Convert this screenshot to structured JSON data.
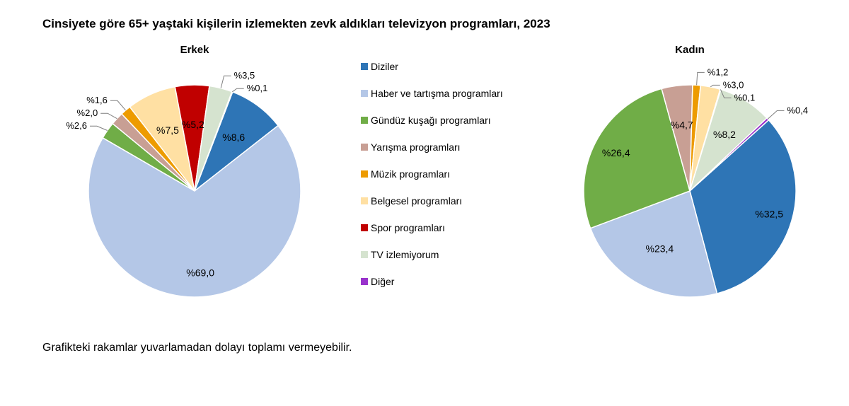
{
  "title": "Cinsiyete göre 65+ yaştaki kişilerin izlemekten zevk aldıkları televizyon programları, 2023",
  "footnote": "Grafikteki rakamlar yuvarlamadan dolayı toplamı vermeyebilir.",
  "legend_fontsize": 14,
  "label_fontsize": 13,
  "categories": [
    {
      "key": "diziler",
      "label": "Diziler",
      "color": "#2e75b6"
    },
    {
      "key": "haber",
      "label": "Haber ve tartışma programları",
      "color": "#b4c7e7"
    },
    {
      "key": "gunduz",
      "label": "Gündüz kuşağı programları",
      "color": "#70ad47"
    },
    {
      "key": "yarisma",
      "label": "Yarışma programları",
      "color": "#c89f94"
    },
    {
      "key": "muzik",
      "label": "Müzik programları",
      "color": "#ed9b00"
    },
    {
      "key": "belgesel",
      "label": "Belgesel programları",
      "color": "#ffe0a3"
    },
    {
      "key": "spor",
      "label": "Spor programları",
      "color": "#c00000"
    },
    {
      "key": "tvyok",
      "label": "TV izlemiyorum",
      "color": "#d5e3cf"
    },
    {
      "key": "diger",
      "label": "Diğer",
      "color": "#9933cc"
    }
  ],
  "charts": [
    {
      "title": "Erkek",
      "type": "pie",
      "radius": 150,
      "start_angle_deg": 21,
      "stroke": "#ffffff",
      "stroke_width": 1.5,
      "slices": [
        {
          "key": "diziler",
          "value": 8.6,
          "label": "%8,6",
          "label_pos": "inner",
          "color": "#2e75b6"
        },
        {
          "key": "haber",
          "value": 69.0,
          "label": "%69,0",
          "label_pos": "inner",
          "color": "#b4c7e7"
        },
        {
          "key": "gunduz",
          "value": 2.6,
          "label": "%2,6",
          "label_pos": "outer",
          "color": "#70ad47"
        },
        {
          "key": "yarisma",
          "value": 2.0,
          "label": "%2,0",
          "label_pos": "outer",
          "color": "#c89f94"
        },
        {
          "key": "muzik",
          "value": 1.6,
          "label": "%1,6",
          "label_pos": "outer",
          "color": "#ed9b00"
        },
        {
          "key": "belgesel",
          "value": 7.5,
          "label": "%7,5",
          "label_pos": "inner",
          "color": "#ffe0a3"
        },
        {
          "key": "spor",
          "value": 5.2,
          "label": "%5,2",
          "label_pos": "inner",
          "color": "#c00000"
        },
        {
          "key": "tvyok",
          "value": 3.5,
          "label": "%3,5",
          "label_pos": "outer",
          "color": "#d5e3cf"
        },
        {
          "key": "diger",
          "value": 0.1,
          "label": "%0,1",
          "label_pos": "outer",
          "color": "#9933cc"
        }
      ]
    },
    {
      "title": "Kadın",
      "type": "pie",
      "radius": 150,
      "start_angle_deg": 48,
      "stroke": "#ffffff",
      "stroke_width": 1.5,
      "slices": [
        {
          "key": "diziler",
          "value": 32.5,
          "label": "%32,5",
          "label_pos": "inner",
          "color": "#2e75b6"
        },
        {
          "key": "haber",
          "value": 23.4,
          "label": "%23,4",
          "label_pos": "inner",
          "color": "#b4c7e7"
        },
        {
          "key": "gunduz",
          "value": 26.4,
          "label": "%26,4",
          "label_pos": "inner",
          "color": "#70ad47"
        },
        {
          "key": "yarisma",
          "value": 4.7,
          "label": "%4,7",
          "label_pos": "inner",
          "color": "#c89f94"
        },
        {
          "key": "muzik",
          "value": 1.2,
          "label": "%1,2",
          "label_pos": "outer",
          "color": "#ed9b00"
        },
        {
          "key": "belgesel",
          "value": 3.0,
          "label": "%3,0",
          "label_pos": "outer",
          "color": "#ffe0a3"
        },
        {
          "key": "spor",
          "value": 0.1,
          "label": "%0,1",
          "label_pos": "outer",
          "color": "#c00000"
        },
        {
          "key": "tvyok",
          "value": 8.2,
          "label": "%8,2",
          "label_pos": "inner",
          "color": "#d5e3cf"
        },
        {
          "key": "diger",
          "value": 0.4,
          "label": "%0,4",
          "label_pos": "outer",
          "color": "#9933cc"
        }
      ]
    }
  ]
}
